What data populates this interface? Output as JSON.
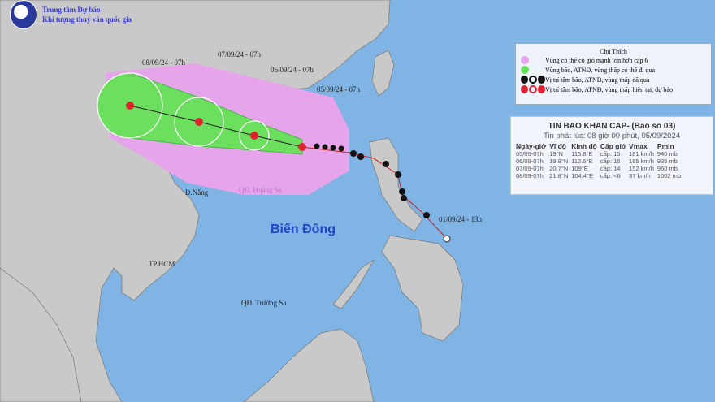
{
  "header": {
    "org_line1": "Trung tâm Dự báo",
    "org_line2": "Khí tượng thuỷ văn quốc gia"
  },
  "map": {
    "track_labels": [
      "08/09/24 - 07h",
      "07/09/24 - 07h",
      "06/09/24 - 07h",
      "05/09/24 - 07h",
      "01/09/24 - 13h"
    ],
    "places": {
      "da_nang": "Đ.Nẵng",
      "hoang_sa": "QĐ. Hoàng Sa",
      "bien_dong": "Biển Đông",
      "tp_hcm": "TP.HCM",
      "truong_sa": "QĐ. Trường Sa"
    },
    "colors": {
      "sea": "#7fb4e4",
      "land": "#c9c9c9",
      "wind_zone": "#e6a4ea",
      "storm_zone": "#6ddf5f",
      "forecast_symbol": "#e0212e",
      "past_symbol": "#111111"
    }
  },
  "legend": {
    "title": "Chú Thích",
    "items": [
      {
        "label": "Vùng có thể có gió mạnh lớn hơn cấp 6",
        "icon": "pink-circle"
      },
      {
        "label": "Vùng bão, ATNĐ, vùng thấp có thể đi qua",
        "icon": "green-circle"
      },
      {
        "label": "Vị trí tâm bão, ATNĐ, vùng thấp đã qua",
        "icon": "black-storm-symbols"
      },
      {
        "label": "Vị trí tâm bão, ATNĐ, vùng thấp hiện tại, dự báo",
        "icon": "red-storm-symbols"
      }
    ]
  },
  "bulletin": {
    "title": "TIN BAO KHAN CAP- (Bao so 03)",
    "issued": "Tin phát lúc: 08 giờ 00 phút, 05/09/2024",
    "columns": [
      "Ngày-giờ",
      "Vĩ độ",
      "Kinh độ",
      "Cấp gió",
      "Vmax",
      "Pmin"
    ],
    "rows": [
      [
        "05/09-07h",
        "19°N",
        "115.8°E",
        "cấp: 15",
        "181 km/h",
        "940 mb"
      ],
      [
        "06/09-07h",
        "19.8°N",
        "112.6°E",
        "cấp: 16",
        "185 km/h",
        "935 mb"
      ],
      [
        "07/09-07h",
        "20.7°N",
        "109°E",
        "cấp: 14",
        "152 km/h",
        "960 mb"
      ],
      [
        "08/09-07h",
        "21.8°N",
        "104.4°E",
        "cấp: <6",
        "37 km/h",
        "1002 mb"
      ]
    ]
  }
}
